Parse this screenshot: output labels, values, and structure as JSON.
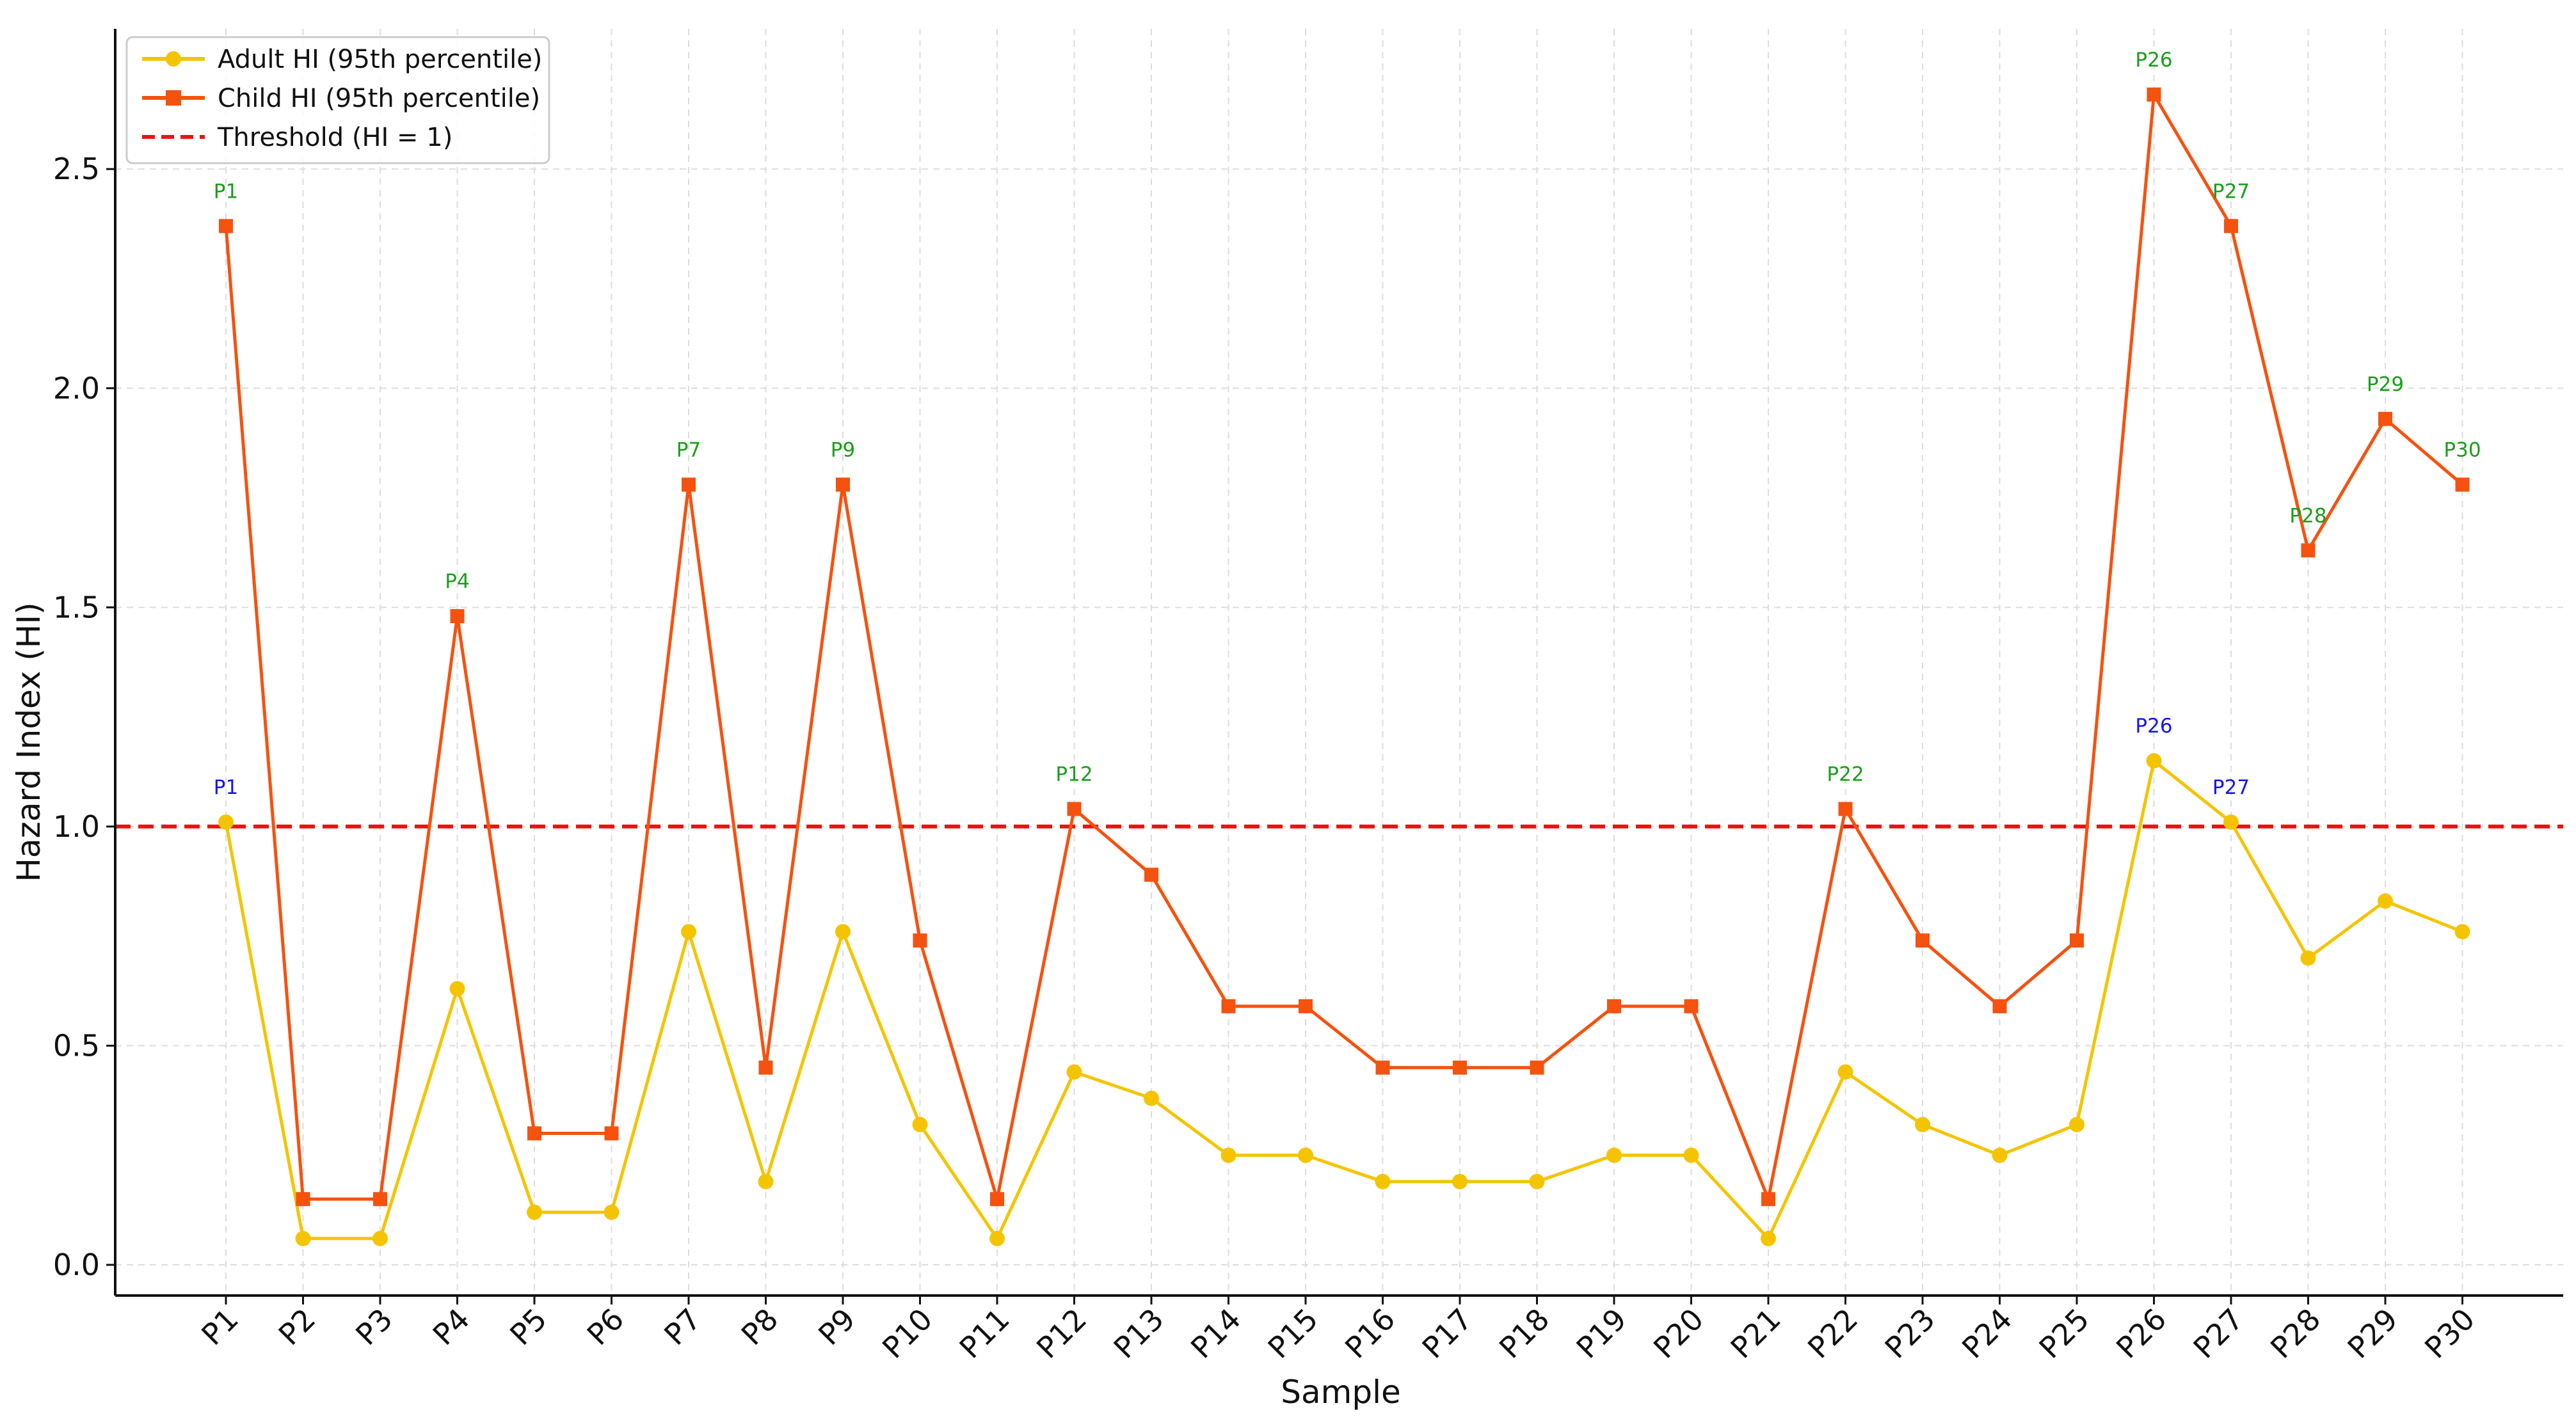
{
  "chart_data": {
    "type": "line",
    "xlabel": "Sample",
    "ylabel": "Hazard Index (HI)",
    "categories": [
      "P1",
      "P2",
      "P3",
      "P4",
      "P5",
      "P6",
      "P7",
      "P8",
      "P9",
      "P10",
      "P11",
      "P12",
      "P13",
      "P14",
      "P15",
      "P16",
      "P17",
      "P18",
      "P19",
      "P20",
      "P21",
      "P22",
      "P23",
      "P24",
      "P25",
      "P26",
      "P27",
      "P28",
      "P29",
      "P30"
    ],
    "ylim": [
      -0.07,
      2.82
    ],
    "yticks": [
      0.0,
      0.5,
      1.0,
      1.5,
      2.0,
      2.5
    ],
    "ytick_labels": [
      "0.0",
      "0.5",
      "1.0",
      "1.5",
      "2.0",
      "2.5"
    ],
    "grid": true,
    "legend_position": "top-left",
    "series": [
      {
        "name": "Adult HI (95th percentile)",
        "marker": "circle",
        "color": "#f5c400",
        "values": [
          1.01,
          0.06,
          0.06,
          0.63,
          0.12,
          0.12,
          0.76,
          0.19,
          0.76,
          0.32,
          0.06,
          0.44,
          0.38,
          0.25,
          0.25,
          0.19,
          0.19,
          0.19,
          0.25,
          0.25,
          0.06,
          0.44,
          0.32,
          0.25,
          0.32,
          1.15,
          1.01,
          0.7,
          0.83,
          0.76
        ]
      },
      {
        "name": "Child HI (95th percentile)",
        "marker": "square",
        "color": "#f5520f",
        "values": [
          2.37,
          0.15,
          0.15,
          1.48,
          0.3,
          0.3,
          1.78,
          0.45,
          1.78,
          0.74,
          0.15,
          1.04,
          0.89,
          0.59,
          0.59,
          0.45,
          0.45,
          0.45,
          0.59,
          0.59,
          0.15,
          1.04,
          0.74,
          0.59,
          0.74,
          2.67,
          2.37,
          1.63,
          1.93,
          1.78
        ]
      }
    ],
    "threshold": {
      "name": "Threshold (HI = 1)",
      "value": 1.0,
      "color": "#ee1111",
      "style": "dashed"
    },
    "annotations": {
      "child": [
        {
          "label": "P1",
          "index": 0
        },
        {
          "label": "P4",
          "index": 3
        },
        {
          "label": "P7",
          "index": 6
        },
        {
          "label": "P9",
          "index": 8
        },
        {
          "label": "P12",
          "index": 11
        },
        {
          "label": "P22",
          "index": 21
        },
        {
          "label": "P26",
          "index": 25
        },
        {
          "label": "P27",
          "index": 26
        },
        {
          "label": "P28",
          "index": 27
        },
        {
          "label": "P29",
          "index": 28
        },
        {
          "label": "P30",
          "index": 29
        }
      ],
      "child_color": "#1a9e1a",
      "adult": [
        {
          "label": "P1",
          "index": 0
        },
        {
          "label": "P26",
          "index": 25
        },
        {
          "label": "P27",
          "index": 26
        }
      ],
      "adult_color": "#1515ee"
    }
  }
}
